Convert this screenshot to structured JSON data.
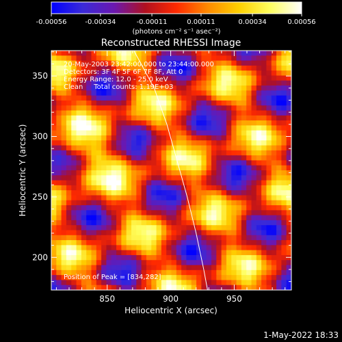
{
  "chart_data": {
    "type": "heatmap",
    "title": "Reconstructed RHESSI Image",
    "xlabel": "Heliocentric X (arcsec)",
    "ylabel": "Heliocentric Y (arcsec)",
    "xlim": [
      806,
      995
    ],
    "ylim": [
      173,
      371
    ],
    "x_ticks": [
      850,
      900,
      950
    ],
    "y_ticks": [
      200,
      250,
      300,
      350
    ],
    "colorbar": {
      "range": [
        -0.00056,
        0.00056
      ],
      "tick_labels": [
        "-0.00056",
        "-0.00034",
        "-0.00011",
        "0.00011",
        "0.00034",
        "0.00056"
      ],
      "unit_label": "(photons cm⁻² s⁻¹ asec⁻²)",
      "colors": [
        "#0000ff",
        "#3a2ad8",
        "#6a18b0",
        "#b01020",
        "#ff2a00",
        "#ff8a00",
        "#ffd000",
        "#ffff60",
        "#ffffff"
      ]
    },
    "annotations": [
      "20-May-2003 23:42:00.000 to 23:44:00.000",
      "Detectors: 3F 4F 5F 6F 7F 8F, Att 0",
      "Energy Range: 12.0 - 25.0 keV",
      "Clean     Total counts: 1.19E+03"
    ],
    "peak_label": "Position of Peak = [834,282]",
    "peak": [
      834,
      282
    ],
    "limb_curve": [
      [
        871,
        371
      ],
      [
        887,
        340
      ],
      [
        897,
        310
      ],
      [
        905,
        280
      ],
      [
        913,
        250
      ],
      [
        920,
        220
      ],
      [
        926,
        190
      ],
      [
        929,
        173
      ]
    ]
  },
  "timestamp": "1-May-2022 18:33"
}
